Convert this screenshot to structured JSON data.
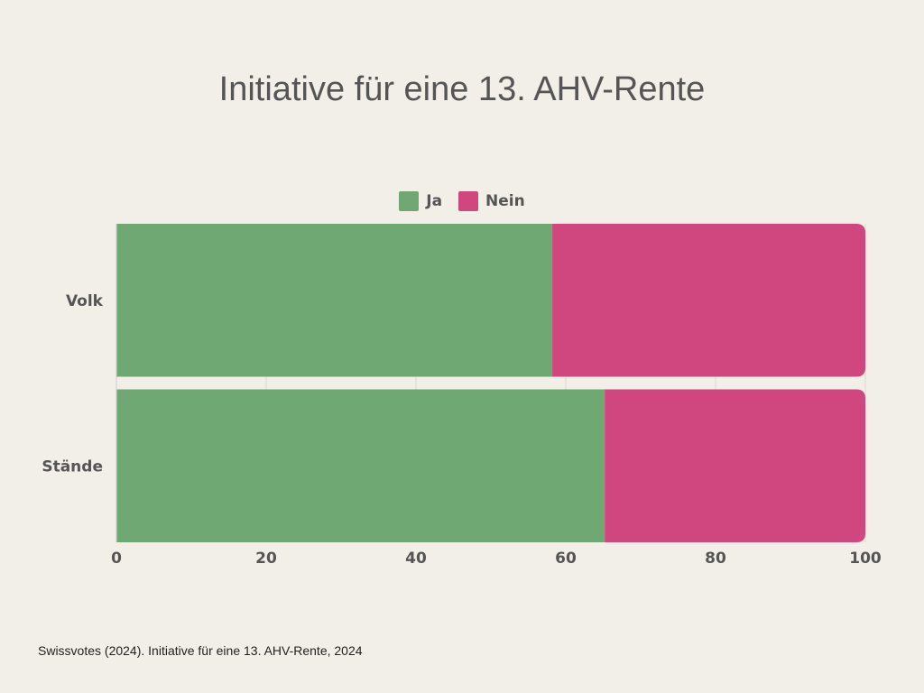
{
  "chart_data": {
    "type": "bar",
    "orientation": "horizontal",
    "stacked": true,
    "title": "Initiative für eine 13. AHV-Rente",
    "categories": [
      "Volk",
      "Stände"
    ],
    "series": [
      {
        "name": "Ja",
        "values": [
          58.2,
          65.2
        ],
        "color": "#6fa872"
      },
      {
        "name": "Nein",
        "values": [
          41.8,
          34.8
        ],
        "color": "#cf477e"
      }
    ],
    "xlim": [
      0,
      100
    ],
    "xticks": [
      "0",
      "20",
      "40",
      "60",
      "80",
      "100"
    ],
    "grid": true,
    "legend": "top-center"
  },
  "source": "Swissvotes (2024). Initiative für eine 13. AHV-Rente, 2024"
}
